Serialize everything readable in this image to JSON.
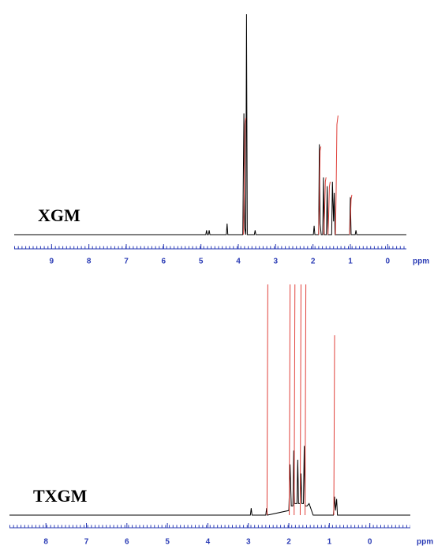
{
  "chart_data": [
    {
      "type": "line",
      "title": "XGM",
      "xlabel": "ppm",
      "xlim": [
        10,
        -0.5
      ],
      "ylim": [
        0,
        100
      ],
      "xticks": [
        9,
        8,
        7,
        6,
        5,
        4,
        3,
        2,
        1,
        0
      ],
      "axis_color": "#2a3bb5",
      "series": [
        {
          "color": "#000000",
          "x": [
            10,
            4.87,
            4.85,
            4.83,
            4.8,
            4.78,
            4.76,
            4.32,
            4.3,
            4.28,
            3.88,
            3.85,
            3.83,
            3.8,
            3.78,
            3.76,
            3.57,
            3.55,
            3.53,
            1.99,
            1.97,
            1.95,
            1.85,
            1.83,
            1.81,
            1.78,
            1.74,
            1.72,
            1.7,
            1.64,
            1.62,
            1.6,
            1.5,
            1.48,
            1.45,
            1.43,
            1.41,
            1.02,
            1.0,
            0.98,
            0.87,
            0.85,
            0.83,
            -0.5
          ],
          "values": [
            0,
            0,
            2,
            0,
            0,
            2,
            0,
            0,
            5,
            0,
            0,
            55,
            3,
            0,
            100,
            0,
            0,
            2,
            0,
            0,
            4,
            0,
            0,
            41,
            5,
            0,
            0,
            26,
            0,
            0,
            22,
            0,
            0,
            24,
            6,
            19,
            0,
            0,
            17,
            0,
            0,
            2,
            0,
            0
          ]
        },
        {
          "color": "#e0403a",
          "x": [
            3.86,
            3.84,
            3.82,
            3.8,
            null,
            1.85,
            1.83,
            1.81,
            1.79,
            null,
            1.71,
            1.69,
            1.67,
            1.65,
            null,
            1.6,
            1.58,
            1.56,
            1.54,
            null,
            1.4,
            1.38,
            1.36,
            1.33,
            null,
            1.02,
            1.0,
            0.98,
            0.96
          ],
          "values": [
            0,
            20,
            50,
            53,
            null,
            0,
            15,
            38,
            40,
            null,
            0,
            10,
            24,
            26,
            null,
            0,
            9,
            22,
            24,
            null,
            0,
            20,
            50,
            54,
            null,
            0,
            7,
            16,
            18
          ]
        }
      ]
    },
    {
      "type": "line",
      "title": "TXGM",
      "xlabel": "ppm",
      "xlim": [
        8.9,
        -1.0
      ],
      "ylim": [
        0,
        100
      ],
      "xticks": [
        8,
        7,
        6,
        5,
        4,
        3,
        2,
        1,
        0
      ],
      "axis_color": "#2a3bb5",
      "series": [
        {
          "color": "#000000",
          "x": [
            8.9,
            2.95,
            2.93,
            2.91,
            2.57,
            2.55,
            2.53,
            2.0,
            1.97,
            1.94,
            1.9,
            1.88,
            1.86,
            1.8,
            1.78,
            1.76,
            1.72,
            1.7,
            1.68,
            1.64,
            1.62,
            1.6,
            1.55,
            1.5,
            1.4,
            0.9,
            0.87,
            0.85,
            0.82,
            0.8,
            -1.0
          ],
          "values": [
            0,
            0,
            3,
            0,
            0,
            3,
            0,
            2,
            22,
            4,
            4,
            28,
            5,
            5,
            24,
            5,
            5,
            18,
            5,
            5,
            30,
            4,
            4,
            5,
            0,
            0,
            8,
            2,
            7,
            0,
            0
          ]
        },
        {
          "color": "#e0403a",
          "x": [
            2.54,
            2.53,
            2.52,
            null,
            1.99,
            1.98,
            1.97,
            null,
            1.87,
            1.86,
            1.85,
            null,
            1.72,
            1.71,
            1.7,
            null,
            1.6,
            1.59,
            1.58,
            null,
            0.89,
            0.88,
            0.87
          ],
          "values": [
            0,
            50,
            100,
            null,
            0,
            50,
            100,
            null,
            0,
            50,
            100,
            null,
            0,
            50,
            100,
            null,
            0,
            50,
            100,
            null,
            0,
            40,
            78
          ]
        }
      ]
    }
  ]
}
